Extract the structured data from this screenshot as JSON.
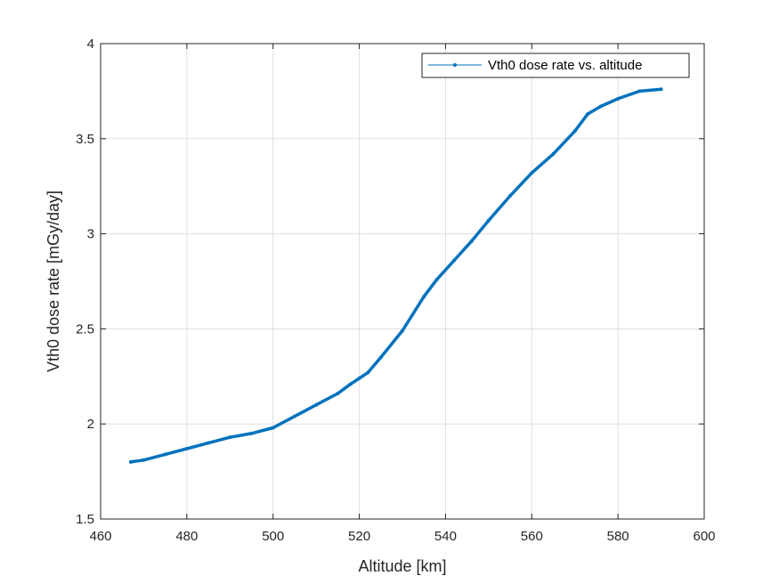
{
  "chart_data": {
    "type": "line",
    "title": "",
    "xlabel": "Altitude [km]",
    "ylabel": "Vth0 dose rate [mGy/day]",
    "xlim": [
      460,
      600
    ],
    "ylim": [
      1.5,
      4
    ],
    "xticks": [
      "460",
      "480",
      "500",
      "520",
      "540",
      "560",
      "580",
      "600"
    ],
    "yticks": [
      "1.5",
      "2",
      "2.5",
      "3",
      "3.5",
      "4"
    ],
    "grid": true,
    "legend_position": "top-right",
    "series": [
      {
        "name": "Vth0 dose rate vs. altitude",
        "color": "#0072BD",
        "x": [
          467,
          470,
          475,
          480,
          485,
          490,
          495,
          500,
          505,
          510,
          515,
          518,
          520,
          522,
          525,
          530,
          535,
          538,
          542,
          546,
          550,
          555,
          560,
          565,
          570,
          573,
          576,
          580,
          585,
          590
        ],
        "y": [
          1.8,
          1.81,
          1.84,
          1.87,
          1.9,
          1.93,
          1.95,
          1.98,
          2.04,
          2.1,
          2.16,
          2.21,
          2.24,
          2.27,
          2.35,
          2.49,
          2.67,
          2.76,
          2.86,
          2.96,
          3.07,
          3.2,
          3.32,
          3.42,
          3.54,
          3.63,
          3.67,
          3.71,
          3.75,
          3.76
        ]
      }
    ]
  }
}
